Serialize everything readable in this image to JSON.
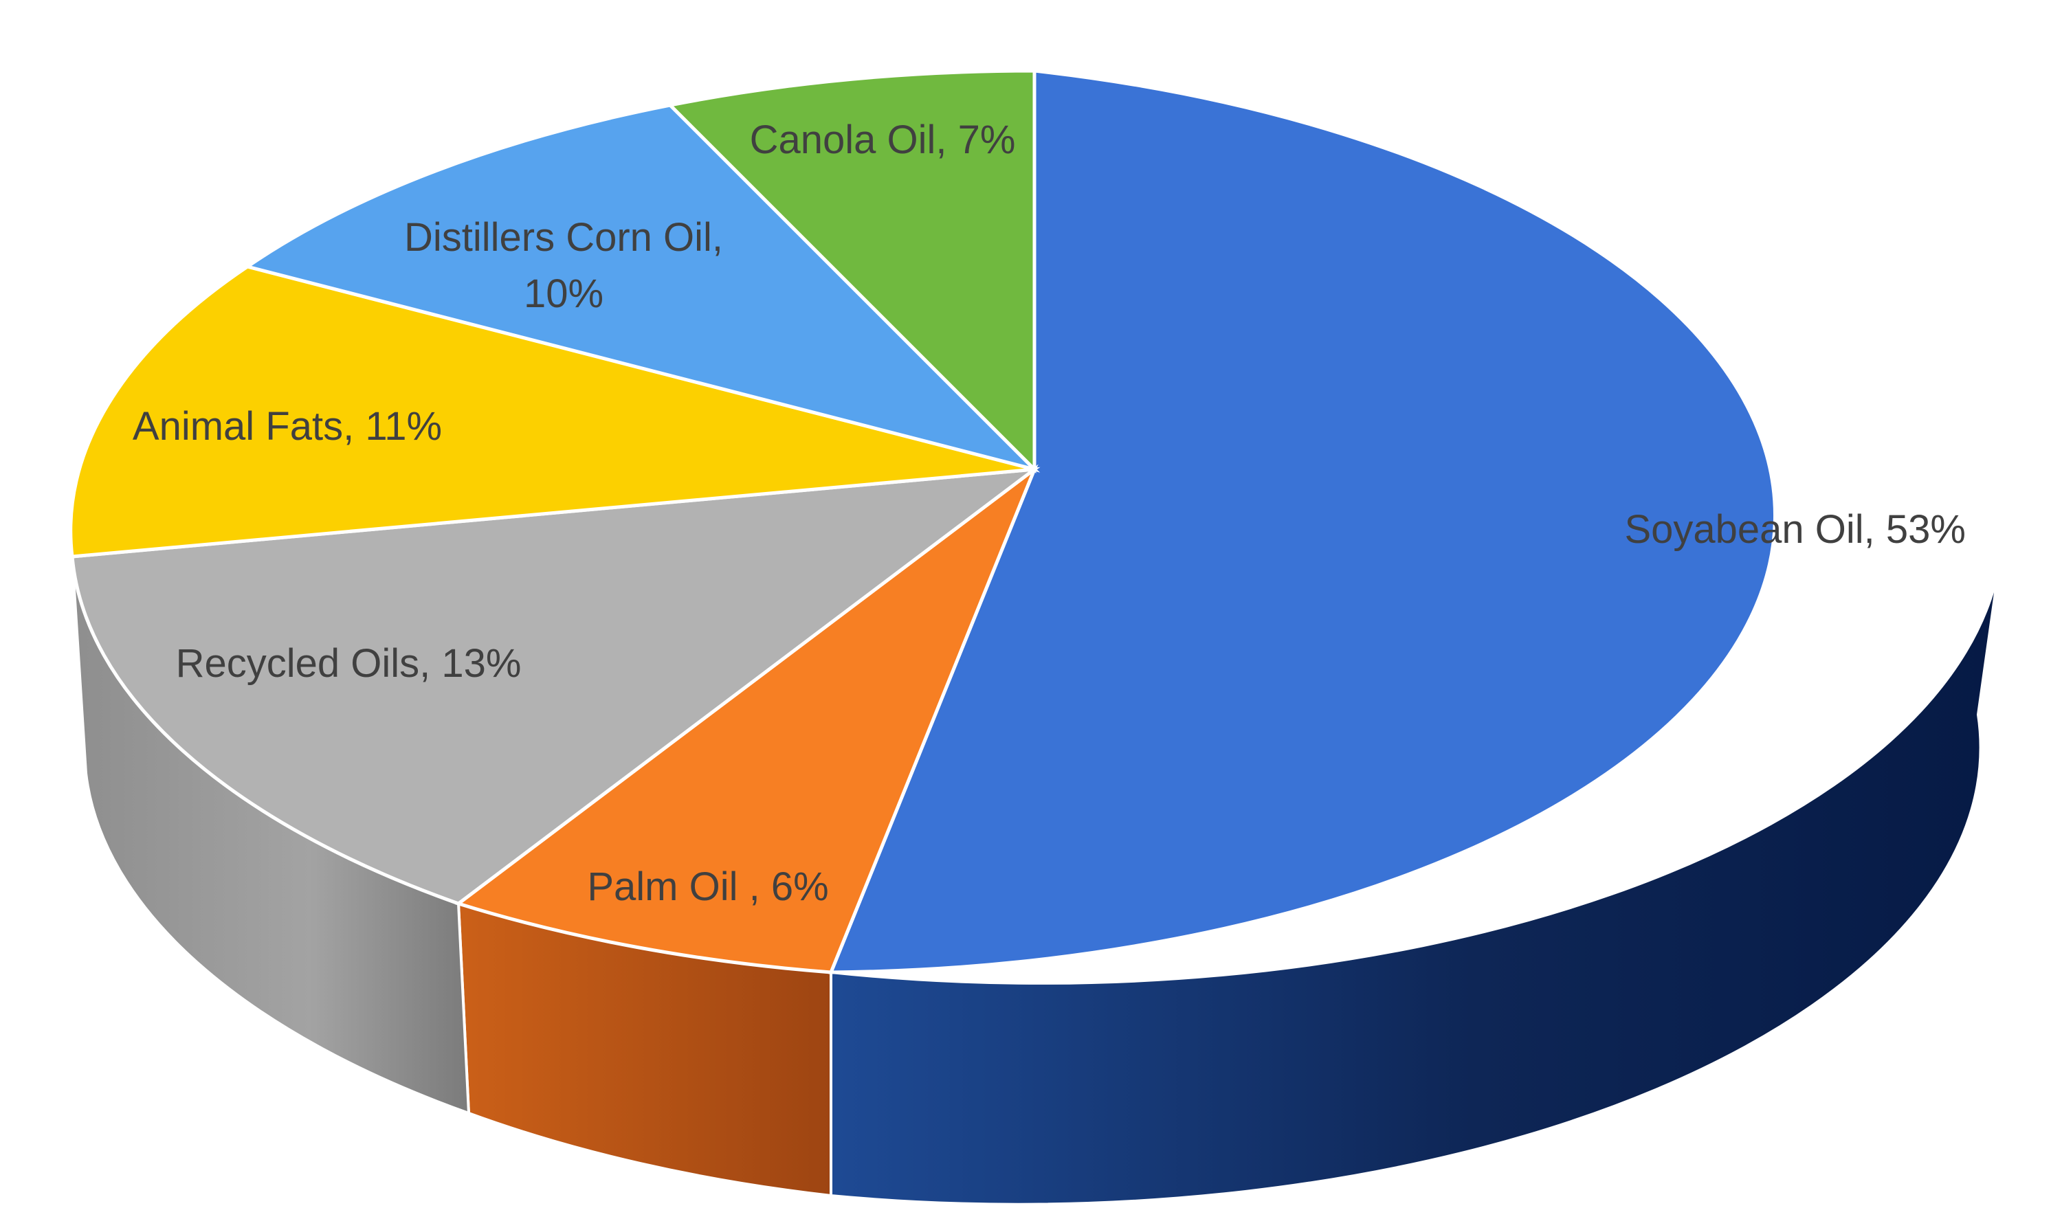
{
  "chart_data": {
    "type": "pie",
    "title": "",
    "style": "3d-tilted",
    "slices": [
      {
        "name": "Soyabean Oil",
        "value": 53,
        "label": "Soyabean Oil, 53%",
        "color": "#3A73D6",
        "side_color": "#142F66"
      },
      {
        "name": "Palm Oil ",
        "value": 6,
        "label": "Palm Oil , 6%",
        "color": "#F77F23",
        "side_color": "#B2541A"
      },
      {
        "name": "Recycled Oils",
        "value": 13,
        "label": "Recycled Oils, 13%",
        "color": "#B2B2B2",
        "side_color": "#8A8A8A"
      },
      {
        "name": "Animal Fats",
        "value": 11,
        "label": "Animal Fats, 11%",
        "color": "#FCD000",
        "side_color": "#C9A300"
      },
      {
        "name": "Distillers Corn Oil",
        "value": 10,
        "label_lines": [
          "Distillers Corn Oil,",
          "10%"
        ],
        "color": "#57A3EE",
        "side_color": "#3A78B8"
      },
      {
        "name": "Canola Oil",
        "value": 7,
        "label": "Canola Oil, 7%",
        "color": "#70B93F",
        "side_color": "#4F8A2A"
      }
    ]
  }
}
